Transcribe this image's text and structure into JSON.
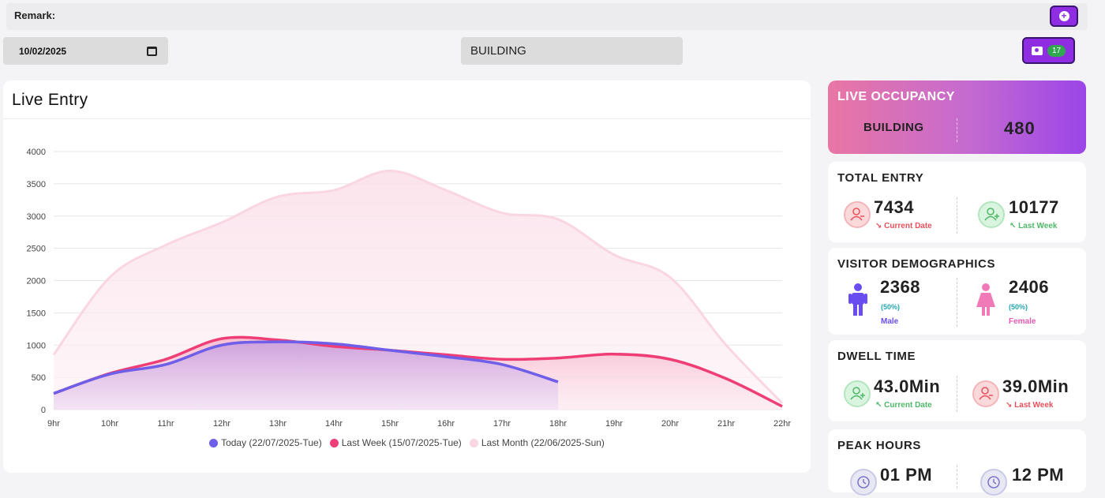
{
  "remark": {
    "label": "Remark:"
  },
  "filters": {
    "date": "10/02/2025",
    "building": "BUILDING",
    "camera_count": "17"
  },
  "live_entry": {
    "title": "Live Entry"
  },
  "chart_data": {
    "type": "area",
    "title": "Live Entry",
    "categories": [
      "9hr",
      "10hr",
      "11hr",
      "12hr",
      "13hr",
      "14hr",
      "15hr",
      "16hr",
      "17hr",
      "18hr",
      "19hr",
      "20hr",
      "21hr",
      "22hr"
    ],
    "yticks": [
      "4000",
      "3500",
      "3000",
      "2500",
      "2000",
      "1500",
      "1000",
      "500",
      "0"
    ],
    "ylim": [
      0,
      4000
    ],
    "grid": true,
    "legend_position": "bottom",
    "series": [
      {
        "name": "Today (22/07/2025-Tue)",
        "color": "#6e5ee8",
        "values": [
          250,
          550,
          700,
          1000,
          1050,
          1020,
          920,
          820,
          700,
          430,
          null,
          null,
          null,
          null
        ]
      },
      {
        "name": "Last Week (15/07/2025-Tue)",
        "color": "#ef3e75",
        "values": [
          250,
          560,
          780,
          1100,
          1080,
          980,
          920,
          850,
          780,
          800,
          860,
          780,
          480,
          50
        ]
      },
      {
        "name": "Last Month (22/06/2025-Sun)",
        "color": "#f9d6e2",
        "values": [
          850,
          2050,
          2550,
          2900,
          3300,
          3400,
          3700,
          3400,
          3050,
          2950,
          2400,
          2050,
          1000,
          100
        ]
      }
    ]
  },
  "occupancy": {
    "title": "LIVE OCCUPANCY",
    "label": "BUILDING",
    "value": "480"
  },
  "total_entry": {
    "title": "TOTAL ENTRY",
    "current_value": "7434",
    "current_label": "Current Date",
    "last_value": "10177",
    "last_label": "Last Week"
  },
  "demographics": {
    "title": "VISITOR DEMOGRAPHICS",
    "male_value": "2368",
    "male_pct": "(50%)",
    "male_label": "Male",
    "female_value": "2406",
    "female_pct": "(50%)",
    "female_label": "Female"
  },
  "dwell": {
    "title": "DWELL TIME",
    "current_value": "43.0Min",
    "current_label": "Current Date",
    "last_value": "39.0Min",
    "last_label": "Last Week"
  },
  "peak": {
    "title": "PEAK HOURS",
    "current_value": "01 PM",
    "last_value": "12 PM"
  },
  "colors": {
    "accent": "#8e2de2",
    "red": "#e8505b",
    "green": "#4fb868"
  }
}
